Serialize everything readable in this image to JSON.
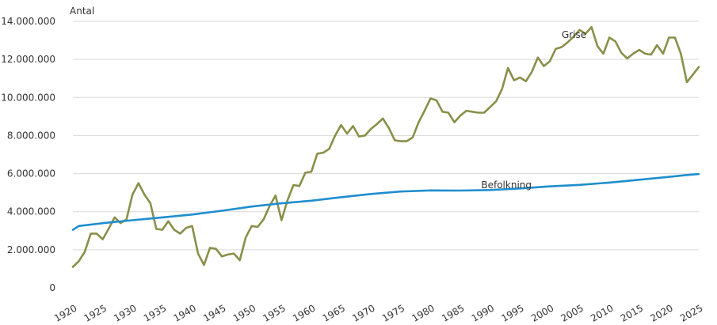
{
  "chart_data": {
    "type": "line",
    "ylabel": "Antal",
    "ylim": [
      0,
      14000000
    ],
    "xlim": [
      1920,
      2025
    ],
    "y_ticks": [
      0,
      2000000,
      4000000,
      6000000,
      8000000,
      10000000,
      12000000,
      14000000
    ],
    "y_tick_labels": [
      "0",
      "2.000.000",
      "4.000.000",
      "6.000.000",
      "8.000.000",
      "10.000.000",
      "12.000.000",
      "14.000.000"
    ],
    "x_ticks": [
      1920,
      1925,
      1930,
      1935,
      1940,
      1945,
      1950,
      1955,
      1960,
      1965,
      1970,
      1975,
      1980,
      1985,
      1990,
      1995,
      2000,
      2005,
      2010,
      2015,
      2020,
      2025
    ],
    "x_tick_labels": [
      "1920",
      "1925",
      "1930",
      "1935",
      "1940",
      "1945",
      "1950",
      "1955",
      "1960",
      "1965",
      "1970",
      "1975",
      "1980",
      "1985",
      "1990",
      "1995",
      "2000",
      "2005",
      "2010",
      "2015",
      "2020",
      "2025"
    ],
    "grid": "horizontal",
    "series": [
      {
        "name": "Grise",
        "color": "#8a8f4a",
        "x": [
          1920,
          1921,
          1922,
          1923,
          1924,
          1925,
          1926,
          1927,
          1928,
          1929,
          1930,
          1931,
          1932,
          1933,
          1934,
          1935,
          1936,
          1937,
          1938,
          1939,
          1940,
          1941,
          1942,
          1943,
          1944,
          1945,
          1946,
          1947,
          1948,
          1949,
          1950,
          1951,
          1952,
          1953,
          1954,
          1955,
          1956,
          1957,
          1958,
          1959,
          1960,
          1961,
          1962,
          1963,
          1964,
          1965,
          1966,
          1967,
          1968,
          1969,
          1970,
          1971,
          1972,
          1973,
          1974,
          1975,
          1976,
          1977,
          1978,
          1979,
          1980,
          1981,
          1982,
          1983,
          1984,
          1985,
          1986,
          1987,
          1988,
          1989,
          1990,
          1991,
          1992,
          1993,
          1994,
          1995,
          1996,
          1997,
          1998,
          1999,
          2000,
          2001,
          2002,
          2003,
          2004,
          2005,
          2006,
          2007,
          2008,
          2009,
          2010,
          2011,
          2012,
          2013,
          2014,
          2015,
          2016,
          2017,
          2018,
          2019,
          2020,
          2021,
          2022,
          2023,
          2024,
          2025
        ],
        "values": [
          1100000,
          1400000,
          1900000,
          2850000,
          2850000,
          2550000,
          3100000,
          3700000,
          3400000,
          3600000,
          4900000,
          5500000,
          4900000,
          4450000,
          3100000,
          3050000,
          3500000,
          3050000,
          2850000,
          3150000,
          3250000,
          1800000,
          1200000,
          2100000,
          2050000,
          1650000,
          1750000,
          1800000,
          1450000,
          2650000,
          3250000,
          3200000,
          3600000,
          4300000,
          4850000,
          3550000,
          4600000,
          5400000,
          5350000,
          6050000,
          6100000,
          7050000,
          7100000,
          7300000,
          8000000,
          8550000,
          8100000,
          8500000,
          7950000,
          8000000,
          8350000,
          8600000,
          8900000,
          8400000,
          7750000,
          7700000,
          7700000,
          7900000,
          8700000,
          9300000,
          9950000,
          9850000,
          9250000,
          9200000,
          8700000,
          9050000,
          9300000,
          9250000,
          9200000,
          9200000,
          9500000,
          9800000,
          10450000,
          11550000,
          10900000,
          11050000,
          10850000,
          11350000,
          12100000,
          11650000,
          11900000,
          12550000,
          12650000,
          12900000,
          13200000,
          13550000,
          13350000,
          13700000,
          12700000,
          12300000,
          13150000,
          12950000,
          12350000,
          12050000,
          12300000,
          12500000,
          12300000,
          12250000,
          12750000,
          12300000,
          13150000,
          13150000,
          12300000,
          10800000,
          11200000,
          11600000
        ]
      },
      {
        "name": "Befolkning",
        "color": "#1f8ecf",
        "x": [
          1920,
          1921,
          1925,
          1930,
          1935,
          1940,
          1945,
          1950,
          1955,
          1960,
          1965,
          1970,
          1975,
          1980,
          1985,
          1990,
          1995,
          2000,
          2005,
          2010,
          2015,
          2020,
          2023,
          2025
        ],
        "values": [
          3050000,
          3250000,
          3400000,
          3550000,
          3700000,
          3850000,
          4050000,
          4270000,
          4440000,
          4580000,
          4760000,
          4930000,
          5060000,
          5120000,
          5110000,
          5140000,
          5220000,
          5330000,
          5410000,
          5530000,
          5680000,
          5830000,
          5930000,
          5980000
        ]
      }
    ],
    "annotations": [
      {
        "text": "Grise",
        "series": 0,
        "x": 2002,
        "y": 13300000
      },
      {
        "text": "Befolkning",
        "series": 1,
        "x": 1988.5,
        "y": 5400000
      }
    ]
  }
}
